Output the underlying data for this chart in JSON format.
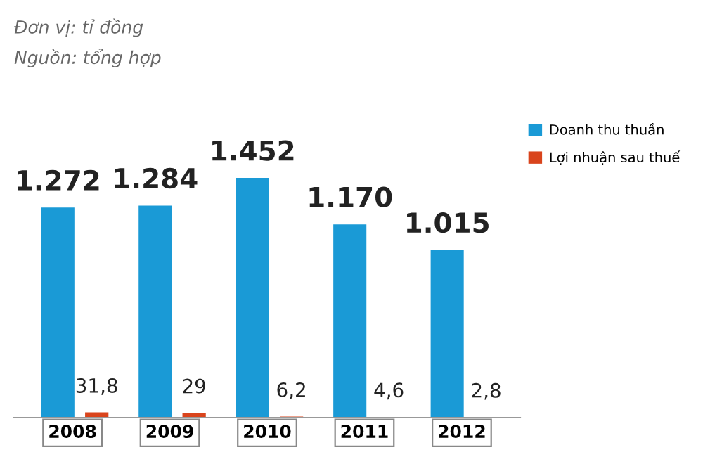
{
  "chart_data": {
    "type": "bar",
    "categories": [
      "2008",
      "2009",
      "2010",
      "2011",
      "2012"
    ],
    "annotations": [
      "Đơn vị: tỉ đồng",
      "Nguồn: tổng hợp"
    ],
    "series": [
      {
        "name": "Doanh thu thuần",
        "color": "#1a9ad6",
        "values": [
          1272,
          1284,
          1452,
          1170,
          1015
        ],
        "value_labels": [
          "1.272",
          "1.284",
          "1.452",
          "1.170",
          "1.015"
        ]
      },
      {
        "name": "Lợi nhuận sau thuế",
        "color": "#d9441c",
        "values": [
          31.8,
          29,
          6.2,
          4.6,
          2.8
        ],
        "value_labels": [
          "31,8",
          "29",
          "6,2",
          "4,6",
          "2,8"
        ]
      }
    ],
    "legend": "top right",
    "grid": false
  }
}
